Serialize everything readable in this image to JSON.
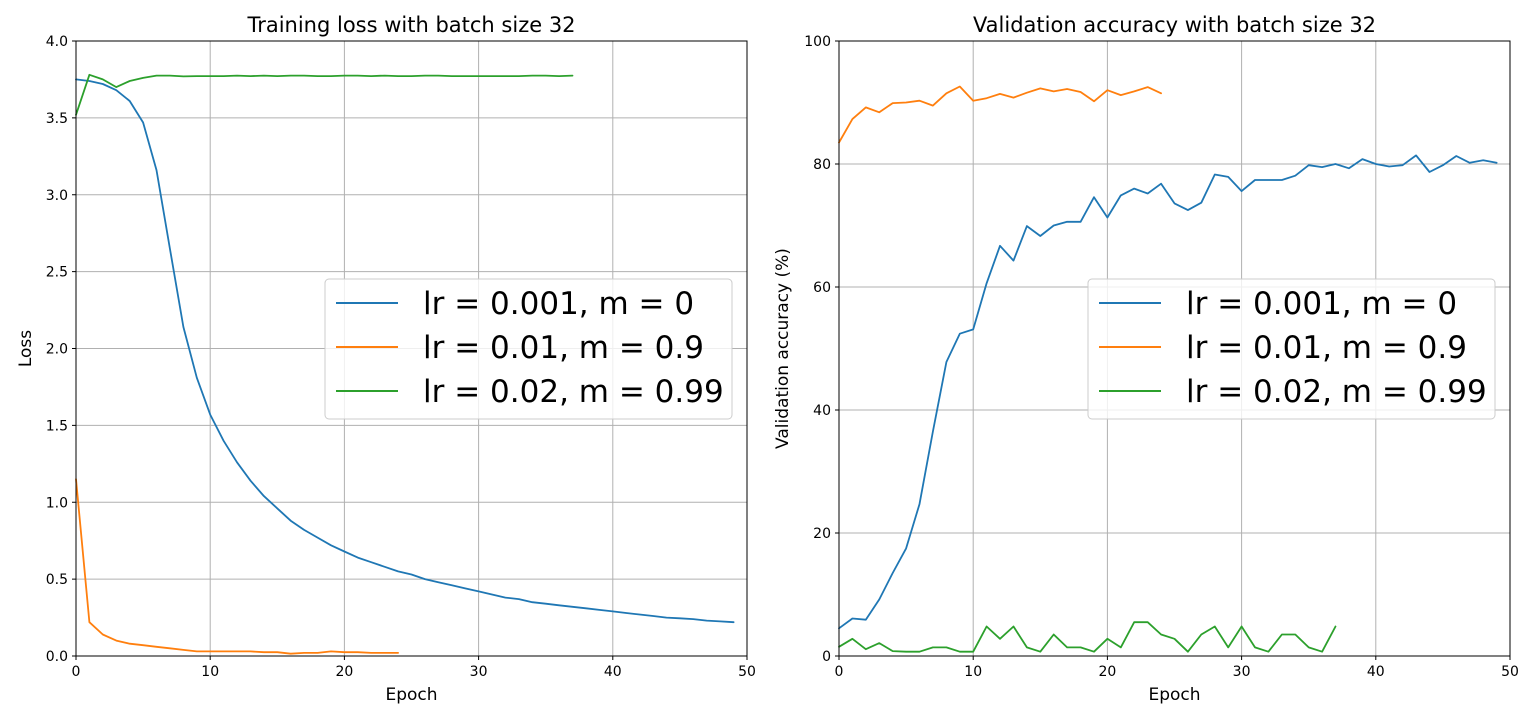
{
  "chart_data": [
    {
      "type": "line",
      "title": "Training loss with batch size 32",
      "xlabel": "Epoch",
      "ylabel": "Loss",
      "xlim": [
        0,
        50
      ],
      "ylim": [
        0,
        4.0
      ],
      "xticks": [
        0,
        10,
        20,
        30,
        40,
        50
      ],
      "xtick_labels": [
        "0",
        "10",
        "20",
        "30",
        "40",
        "50"
      ],
      "yticks": [
        0,
        0.5,
        1.0,
        1.5,
        2.0,
        2.5,
        3.0,
        3.5,
        4.0
      ],
      "ytick_labels": [
        "0.0",
        "0.5",
        "1.0",
        "1.5",
        "2.0",
        "2.5",
        "3.0",
        "3.5",
        "4.0"
      ],
      "grid": true,
      "legend_position": "center-right",
      "series": [
        {
          "name": "lr = 0.001, m = 0",
          "color": "#1f77b4",
          "x": [
            0,
            1,
            2,
            3,
            4,
            5,
            6,
            7,
            8,
            9,
            10,
            11,
            12,
            13,
            14,
            15,
            16,
            17,
            18,
            19,
            20,
            21,
            22,
            23,
            24,
            25,
            26,
            27,
            28,
            29,
            30,
            31,
            32,
            33,
            34,
            35,
            36,
            37,
            38,
            39,
            40,
            41,
            42,
            43,
            44,
            45,
            46,
            47,
            48,
            49
          ],
          "y": [
            3.75,
            3.74,
            3.72,
            3.68,
            3.61,
            3.47,
            3.16,
            2.65,
            2.14,
            1.81,
            1.57,
            1.4,
            1.26,
            1.14,
            1.04,
            0.96,
            0.88,
            0.82,
            0.77,
            0.72,
            0.68,
            0.64,
            0.61,
            0.58,
            0.55,
            0.53,
            0.5,
            0.48,
            0.46,
            0.44,
            0.42,
            0.4,
            0.38,
            0.37,
            0.35,
            0.34,
            0.33,
            0.32,
            0.31,
            0.3,
            0.29,
            0.28,
            0.27,
            0.26,
            0.25,
            0.245,
            0.24,
            0.23,
            0.225,
            0.22
          ]
        },
        {
          "name": "lr = 0.01, m = 0.9",
          "color": "#ff7f0e",
          "x": [
            0,
            1,
            2,
            3,
            4,
            5,
            6,
            7,
            8,
            9,
            10,
            11,
            12,
            13,
            14,
            15,
            16,
            17,
            18,
            19,
            20,
            21,
            22,
            23,
            24
          ],
          "y": [
            1.15,
            0.22,
            0.14,
            0.1,
            0.08,
            0.07,
            0.06,
            0.05,
            0.04,
            0.03,
            0.03,
            0.03,
            0.03,
            0.03,
            0.025,
            0.025,
            0.015,
            0.02,
            0.02,
            0.03,
            0.025,
            0.025,
            0.02,
            0.02,
            0.02
          ]
        },
        {
          "name": "lr = 0.02, m = 0.99",
          "color": "#2ca02c",
          "x": [
            0,
            1,
            2,
            3,
            4,
            5,
            6,
            7,
            8,
            9,
            10,
            11,
            12,
            13,
            14,
            15,
            16,
            17,
            18,
            19,
            20,
            21,
            22,
            23,
            24,
            25,
            26,
            27,
            28,
            29,
            30,
            31,
            32,
            33,
            34,
            35,
            36,
            37
          ],
          "y": [
            3.52,
            3.78,
            3.75,
            3.7,
            3.74,
            3.76,
            3.775,
            3.775,
            3.77,
            3.772,
            3.772,
            3.772,
            3.775,
            3.772,
            3.775,
            3.772,
            3.775,
            3.775,
            3.772,
            3.772,
            3.775,
            3.775,
            3.772,
            3.775,
            3.772,
            3.772,
            3.775,
            3.775,
            3.772,
            3.772,
            3.772,
            3.772,
            3.772,
            3.772,
            3.775,
            3.775,
            3.772,
            3.775
          ]
        }
      ]
    },
    {
      "type": "line",
      "title": "Validation accuracy with batch size 32",
      "xlabel": "Epoch",
      "ylabel": "Validation accuracy (%)",
      "xlim": [
        0,
        50
      ],
      "ylim": [
        0,
        100
      ],
      "xticks": [
        0,
        10,
        20,
        30,
        40,
        50
      ],
      "xtick_labels": [
        "0",
        "10",
        "20",
        "30",
        "40",
        "50"
      ],
      "yticks": [
        0,
        20,
        40,
        60,
        80,
        100
      ],
      "ytick_labels": [
        "0",
        "20",
        "40",
        "60",
        "80",
        "100"
      ],
      "grid": true,
      "legend_position": "center-right",
      "series": [
        {
          "name": "lr = 0.001, m = 0",
          "color": "#1f77b4",
          "x": [
            0,
            1,
            2,
            3,
            4,
            5,
            6,
            7,
            8,
            9,
            10,
            11,
            12,
            13,
            14,
            15,
            16,
            17,
            18,
            19,
            20,
            21,
            22,
            23,
            24,
            25,
            26,
            27,
            28,
            29,
            30,
            31,
            32,
            33,
            34,
            35,
            36,
            37,
            38,
            39,
            40,
            41,
            42,
            43,
            44,
            45,
            46,
            47,
            48,
            49
          ],
          "y": [
            4.5,
            6.1,
            5.9,
            9.2,
            13.5,
            17.5,
            24.7,
            36.5,
            47.8,
            52.4,
            53.1,
            60.6,
            66.7,
            64.3,
            69.9,
            68.3,
            70.0,
            70.6,
            70.6,
            74.6,
            71.3,
            74.9,
            76.0,
            75.2,
            76.8,
            73.6,
            72.5,
            73.7,
            78.3,
            77.9,
            75.6,
            77.4,
            77.4,
            77.4,
            78.1,
            79.8,
            79.5,
            80.0,
            79.3,
            80.8,
            80.0,
            79.6,
            79.8,
            81.4,
            78.7,
            79.8,
            81.3,
            80.2,
            80.6,
            80.2
          ]
        },
        {
          "name": "lr = 0.01, m = 0.9",
          "color": "#ff7f0e",
          "x": [
            0,
            1,
            2,
            3,
            4,
            5,
            6,
            7,
            8,
            9,
            10,
            11,
            12,
            13,
            14,
            15,
            16,
            17,
            18,
            19,
            20,
            21,
            22,
            23,
            24
          ],
          "y": [
            83.5,
            87.3,
            89.2,
            88.4,
            89.9,
            90.0,
            90.3,
            89.5,
            91.5,
            92.6,
            90.3,
            90.7,
            91.4,
            90.8,
            91.6,
            92.3,
            91.8,
            92.2,
            91.7,
            90.2,
            92.0,
            91.2,
            91.8,
            92.5,
            91.5
          ]
        },
        {
          "name": "lr = 0.02, m = 0.99",
          "color": "#2ca02c",
          "x": [
            0,
            1,
            2,
            3,
            4,
            5,
            6,
            7,
            8,
            9,
            10,
            11,
            12,
            13,
            14,
            15,
            16,
            17,
            18,
            19,
            20,
            21,
            22,
            23,
            24,
            25,
            26,
            27,
            28,
            29,
            30,
            31,
            32,
            33,
            34,
            35,
            36,
            37
          ],
          "y": [
            1.5,
            2.8,
            1.1,
            2.1,
            0.8,
            0.7,
            0.7,
            1.4,
            1.4,
            0.7,
            0.7,
            4.8,
            2.8,
            4.8,
            1.4,
            0.7,
            3.5,
            1.4,
            1.4,
            0.7,
            2.8,
            1.4,
            5.5,
            5.5,
            3.5,
            2.8,
            0.7,
            3.5,
            4.8,
            1.4,
            4.8,
            1.4,
            0.7,
            3.5,
            3.5,
            1.4,
            0.7,
            4.8
          ]
        }
      ]
    }
  ]
}
